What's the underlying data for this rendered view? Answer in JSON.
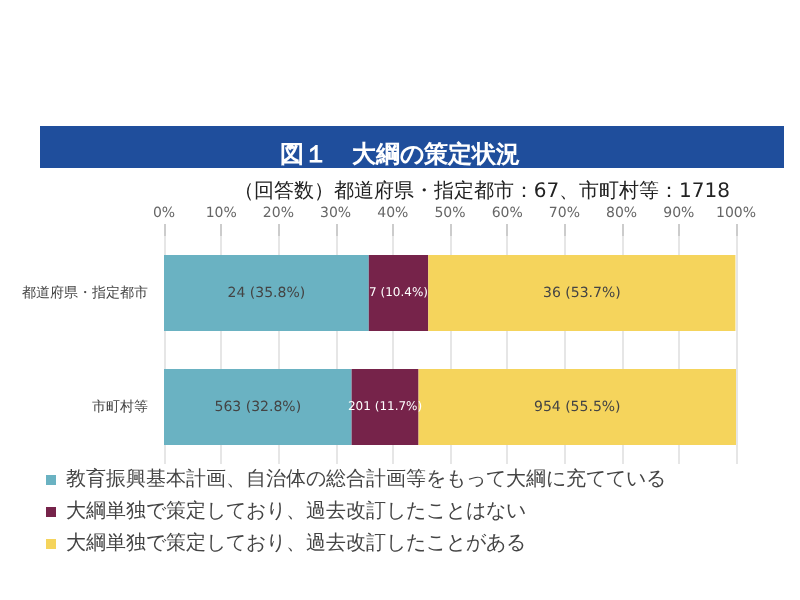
{
  "chart_data": {
    "type": "bar",
    "title": "図１　大綱の策定状況",
    "subtitle": "（回答数）都道府県・指定都市：67、市町村等：1718",
    "orientation": "horizontal",
    "stacked": true,
    "categories": [
      "都道府県・指定都市",
      "市町村等"
    ],
    "series": [
      {
        "name": "教育振興基本計画、自治体の総合計画等をもって大綱に充てている",
        "color": "#6ab2c2",
        "values": [
          35.8,
          32.8
        ],
        "value_labels": [
          "24 (35.8%)",
          "563 (32.8%)"
        ]
      },
      {
        "name": "大綱単独で策定しており、過去改訂したことはない",
        "color": "#76234a",
        "values": [
          10.4,
          11.7
        ],
        "value_labels": [
          "7 (10.4%)",
          "201 (11.7%)"
        ]
      },
      {
        "name": "大綱単独で策定しており、過去改訂したことがある",
        "color": "#f5d45c",
        "values": [
          53.7,
          55.5
        ],
        "value_labels": [
          "36 (53.7%)",
          "954 (55.5%)"
        ]
      }
    ],
    "xlim": [
      0,
      100
    ],
    "xticks": [
      {
        "value": 0,
        "label": "0%"
      },
      {
        "value": 10,
        "label": "10%"
      },
      {
        "value": 20,
        "label": "20%"
      },
      {
        "value": 30,
        "label": "30%"
      },
      {
        "value": 40,
        "label": "40%"
      },
      {
        "value": 50,
        "label": "50%"
      },
      {
        "value": 60,
        "label": "60%"
      },
      {
        "value": 70,
        "label": "70%"
      },
      {
        "value": 80,
        "label": "80%"
      },
      {
        "value": 90,
        "label": "90%"
      },
      {
        "value": 100,
        "label": "100%"
      }
    ],
    "grid": "x",
    "legend": "bottom"
  }
}
